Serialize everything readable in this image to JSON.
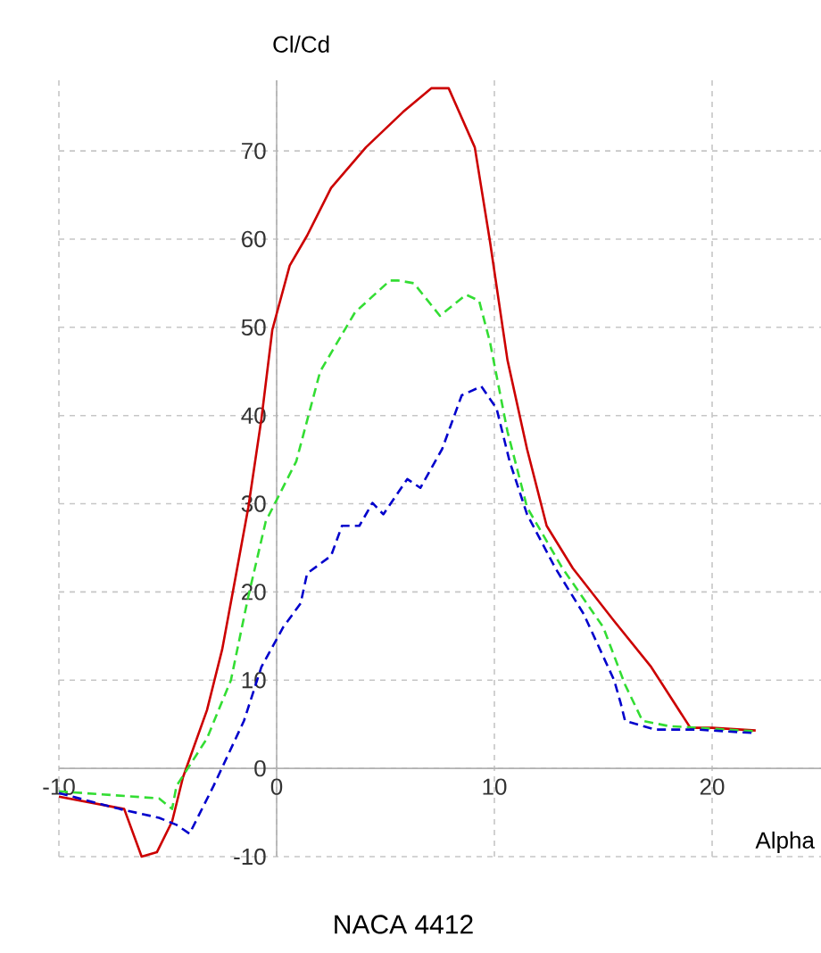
{
  "chart_data": {
    "type": "line",
    "title": "NACA 4412",
    "xlabel": "Alpha",
    "ylabel": "Cl/Cd",
    "xlim": [
      -10,
      25
    ],
    "ylim": [
      -10,
      78
    ],
    "xticks": [
      -10,
      0,
      10,
      20
    ],
    "yticks": [
      -10,
      0,
      10,
      20,
      30,
      40,
      50,
      60,
      70
    ],
    "grid": true,
    "series": [
      {
        "color": "#cc0000",
        "line_style": "solid",
        "x": [
          -10,
          -7,
          -6.2,
          -5.5,
          -4.8,
          -4.3,
          -3.2,
          -2.5,
          -1.9,
          -1.3,
          -0.7,
          -0.2,
          0.6,
          1.4,
          2.5,
          4.1,
          5.8,
          7.1,
          7.9,
          9.1,
          9.8,
          10.6,
          11.5,
          12.4,
          13.6,
          15.5,
          17.2,
          19,
          20,
          22
        ],
        "values": [
          -3.2,
          -4.6,
          -10,
          -9.5,
          -6,
          -1,
          6.6,
          13.5,
          21.5,
          29.6,
          39.6,
          49.7,
          57,
          60.4,
          65.8,
          70.4,
          74.4,
          77.1,
          77.1,
          70.4,
          59.7,
          46.3,
          36.2,
          27.5,
          22.7,
          16.7,
          11.5,
          4.6,
          4.6,
          4.3
        ]
      },
      {
        "color": "#33dd33",
        "line_style": "dashed",
        "x": [
          -10,
          -5.4,
          -4.8,
          -4.6,
          -3.2,
          -2.1,
          -1.3,
          -0.5,
          0.9,
          2,
          3.6,
          5.2,
          5.6,
          6.3,
          7.5,
          8.7,
          9.3,
          9.8,
          10.6,
          11.5,
          13.1,
          15,
          16,
          16.8,
          18,
          22
        ],
        "values": [
          -2.6,
          -3.4,
          -4.6,
          -2,
          3.4,
          10,
          19.5,
          28,
          34.8,
          45,
          51.7,
          55.3,
          55.3,
          55,
          51.3,
          53.7,
          53,
          48.3,
          38.2,
          29.6,
          22.8,
          16,
          9.5,
          5.4,
          4.8,
          4.2
        ]
      },
      {
        "color": "#0000cc",
        "line_style": "dashed",
        "x": [
          -10,
          -7.2,
          -5.4,
          -4.6,
          -4,
          -2.9,
          -1.5,
          -0.7,
          0.3,
          1.1,
          1.4,
          2.5,
          3,
          3.8,
          4.4,
          4.9,
          6,
          6.6,
          7.6,
          8.5,
          9.4,
          10.1,
          10.7,
          11.5,
          12.8,
          14.1,
          15.5,
          15.8,
          16,
          17.4,
          19.3,
          22
        ],
        "values": [
          -2.8,
          -4.6,
          -5.6,
          -6.4,
          -7.4,
          -2,
          5.4,
          11.5,
          16,
          18.7,
          22.1,
          24.1,
          27.5,
          27.5,
          30.1,
          28.8,
          32.8,
          31.8,
          36.2,
          42.3,
          43.3,
          40.8,
          34.8,
          28.8,
          22.7,
          17.5,
          10,
          7.4,
          5.4,
          4.4,
          4.4,
          4
        ]
      }
    ]
  }
}
